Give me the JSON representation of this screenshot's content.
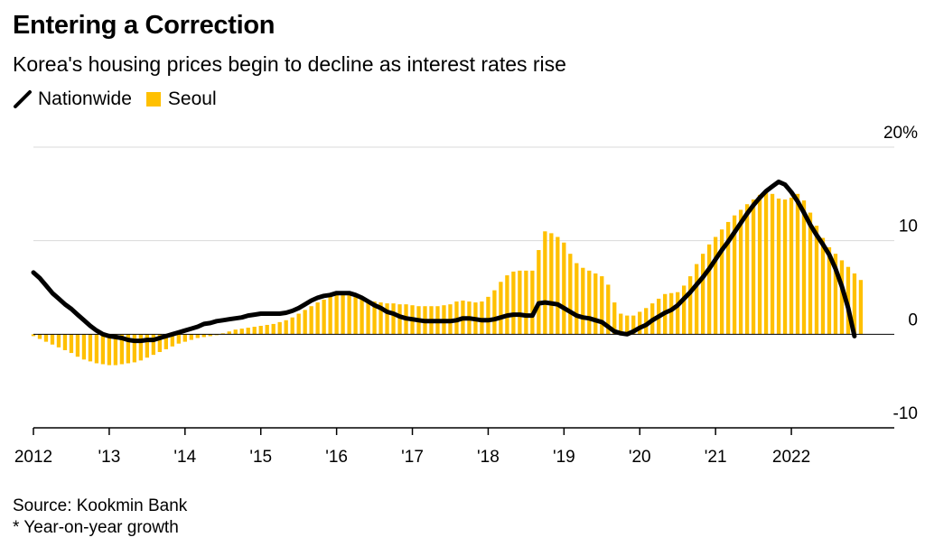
{
  "title": "Entering a Correction",
  "subtitle": "Korea's housing prices begin to decline as interest rates rise",
  "legend": {
    "nationwide": "Nationwide",
    "seoul": "Seoul"
  },
  "colors": {
    "seoul": "#ffc000",
    "nationwide": "#000000",
    "grid": "#d9d9d9",
    "axis": "#000000"
  },
  "footer": {
    "source": "Source: Kookmin Bank",
    "note": "* Year-on-year growth"
  },
  "chart_data": {
    "type": "bar+line",
    "ylim": [
      -10,
      20
    ],
    "y_ticks": [
      {
        "value": 20,
        "label": "20%"
      },
      {
        "value": 10,
        "label": "10"
      },
      {
        "value": 0,
        "label": "0"
      },
      {
        "value": -10,
        "label": "-10"
      }
    ],
    "x_range": [
      2012.0,
      2022.917
    ],
    "x_ticks": [
      {
        "value": 2012,
        "label": "2012"
      },
      {
        "value": 2013,
        "label": "'13"
      },
      {
        "value": 2014,
        "label": "'14"
      },
      {
        "value": 2015,
        "label": "'15"
      },
      {
        "value": 2016,
        "label": "'16"
      },
      {
        "value": 2017,
        "label": "'17"
      },
      {
        "value": 2018,
        "label": "'18"
      },
      {
        "value": 2019,
        "label": "'19"
      },
      {
        "value": 2020,
        "label": "'20"
      },
      {
        "value": 2021,
        "label": "'21"
      },
      {
        "value": 2022,
        "label": "2022"
      }
    ],
    "series": [
      {
        "name": "Seoul",
        "kind": "bar",
        "start": 2012.0,
        "step": 0.08333,
        "values": [
          -0.2,
          -0.5,
          -0.8,
          -1.1,
          -1.4,
          -1.7,
          -2.0,
          -2.4,
          -2.7,
          -2.9,
          -3.1,
          -3.2,
          -3.3,
          -3.3,
          -3.2,
          -3.1,
          -3.0,
          -2.8,
          -2.5,
          -2.2,
          -1.9,
          -1.6,
          -1.3,
          -1.0,
          -0.8,
          -0.6,
          -0.4,
          -0.3,
          -0.2,
          -0.1,
          0.1,
          0.3,
          0.5,
          0.6,
          0.7,
          0.8,
          0.9,
          1.0,
          1.1,
          1.3,
          1.5,
          1.8,
          2.2,
          2.6,
          3.0,
          3.4,
          3.7,
          4.0,
          4.2,
          4.3,
          4.2,
          4.0,
          3.8,
          3.6,
          3.5,
          3.4,
          3.3,
          3.3,
          3.2,
          3.2,
          3.1,
          3.0,
          3.0,
          3.0,
          3.0,
          3.1,
          3.2,
          3.5,
          3.6,
          3.5,
          3.4,
          3.5,
          4.0,
          4.7,
          5.6,
          6.3,
          6.7,
          6.8,
          6.8,
          6.8,
          9.0,
          11.0,
          10.8,
          10.4,
          9.8,
          8.6,
          7.6,
          7.1,
          6.8,
          6.5,
          6.2,
          5.3,
          3.4,
          2.2,
          2.0,
          2.0,
          2.4,
          2.8,
          3.3,
          3.8,
          4.3,
          4.4,
          4.5,
          5.2,
          6.2,
          7.5,
          8.6,
          9.6,
          10.4,
          11.2,
          12.0,
          12.7,
          13.3,
          13.9,
          14.4,
          14.9,
          15.2,
          15.0,
          14.5,
          14.4,
          14.6,
          15.0,
          14.3,
          13.0,
          11.6,
          10.3,
          9.3,
          8.6,
          7.9,
          7.2,
          6.5,
          5.8
        ]
      },
      {
        "name": "Nationwide",
        "kind": "line",
        "start": 2012.0,
        "step": 0.08333,
        "values": [
          6.6,
          6.0,
          5.2,
          4.4,
          3.8,
          3.2,
          2.7,
          2.1,
          1.5,
          0.9,
          0.4,
          0.0,
          -0.2,
          -0.3,
          -0.4,
          -0.6,
          -0.7,
          -0.7,
          -0.6,
          -0.6,
          -0.4,
          -0.2,
          0.0,
          0.2,
          0.4,
          0.6,
          0.8,
          1.1,
          1.2,
          1.4,
          1.5,
          1.6,
          1.7,
          1.8,
          2.0,
          2.1,
          2.2,
          2.2,
          2.2,
          2.2,
          2.3,
          2.5,
          2.8,
          3.2,
          3.6,
          3.9,
          4.1,
          4.2,
          4.4,
          4.4,
          4.4,
          4.2,
          3.9,
          3.5,
          3.1,
          2.8,
          2.4,
          2.2,
          1.9,
          1.7,
          1.6,
          1.5,
          1.4,
          1.4,
          1.4,
          1.4,
          1.4,
          1.5,
          1.7,
          1.7,
          1.6,
          1.5,
          1.5,
          1.6,
          1.8,
          2.0,
          2.1,
          2.1,
          2.0,
          2.0,
          3.3,
          3.4,
          3.3,
          3.2,
          2.8,
          2.4,
          2.0,
          1.8,
          1.7,
          1.5,
          1.3,
          0.8,
          0.3,
          0.1,
          0.0,
          0.3,
          0.7,
          1.0,
          1.5,
          1.9,
          2.3,
          2.6,
          3.1,
          3.8,
          4.5,
          5.3,
          6.1,
          7.0,
          8.0,
          9.0,
          9.9,
          10.9,
          11.9,
          12.9,
          13.8,
          14.6,
          15.3,
          15.8,
          16.3,
          16.0,
          15.2,
          14.2,
          13.0,
          11.7,
          10.6,
          9.6,
          8.5,
          7.0,
          5.1,
          2.8,
          -0.2
        ]
      }
    ]
  }
}
